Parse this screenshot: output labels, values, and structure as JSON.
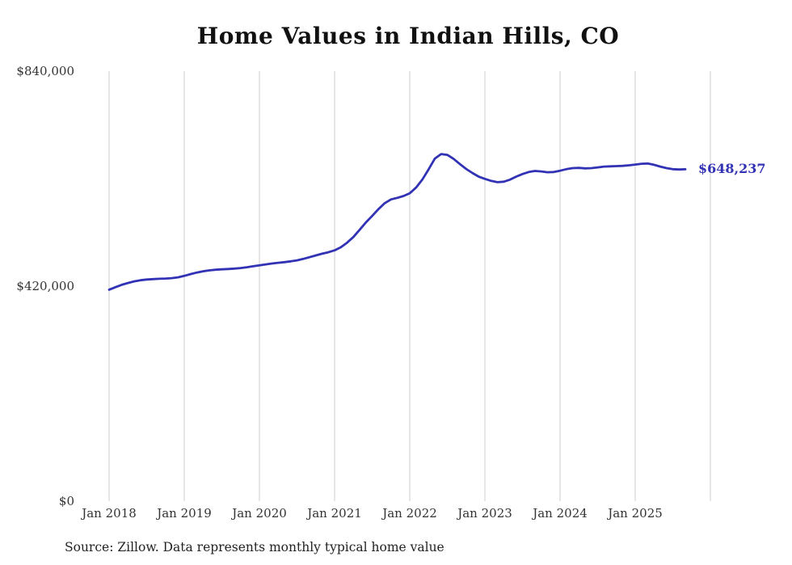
{
  "title": "Home Values in Indian Hills, CO",
  "source_note": "Source: Zillow. Data represents monthly typical home value",
  "end_label": "$648,237",
  "colors": {
    "line": "#3232b4",
    "grid": "#cccccc",
    "axis_text": "#333333",
    "title_text": "#111111",
    "background": "#ffffff"
  },
  "y_axis": {
    "ticks": [
      {
        "label": "$840,000",
        "value": 840000
      },
      {
        "label": "$420,000",
        "value": 420000
      },
      {
        "label": "$0",
        "value": 0
      }
    ]
  },
  "x_axis": {
    "labels": [
      "Jan 2018",
      "Jan 2019",
      "Jan 2020",
      "Jan 2021",
      "Jan 2022",
      "Jan 2023",
      "Jan 2024",
      "Jan 2025"
    ],
    "gridlines": 9
  },
  "chart_data": {
    "type": "line",
    "title": "Home Values in Indian Hills, CO",
    "x_start": "2018-01",
    "x_interval": "month",
    "ylim": [
      0,
      840000
    ],
    "grid": "vertical-yearly",
    "legend": "none",
    "final_value": 648237,
    "final_value_label": "$648,237",
    "series": [
      {
        "name": "Typical home value",
        "color": "#3232b4",
        "values": [
          413000,
          418000,
          422500,
          426200,
          429300,
          431500,
          432900,
          433800,
          434400,
          434900,
          435600,
          437200,
          440000,
          443500,
          446500,
          449000,
          450800,
          452000,
          452800,
          453400,
          454200,
          455400,
          457000,
          458800,
          460700,
          462500,
          464200,
          465600,
          466900,
          468400,
          470400,
          473200,
          476500,
          480000,
          483300,
          486200,
          490000,
          496000,
          505000,
          516000,
          530000,
          544500,
          557000,
          570500,
          582000,
          589500,
          592500,
          596000,
          601500,
          612500,
          628000,
          648000,
          669000,
          678000,
          676500,
          668500,
          658500,
          649000,
          641000,
          634000,
          629500,
          625500,
          623000,
          624000,
          628000,
          634000,
          639000,
          643000,
          645000,
          644000,
          642500,
          643000,
          645500,
          648500,
          650500,
          651000,
          650000,
          650500,
          652000,
          653500,
          654000,
          654500,
          655000,
          656000,
          657500,
          659000,
          659500,
          657000,
          653500,
          650500,
          648500,
          647800,
          648237
        ]
      }
    ]
  }
}
